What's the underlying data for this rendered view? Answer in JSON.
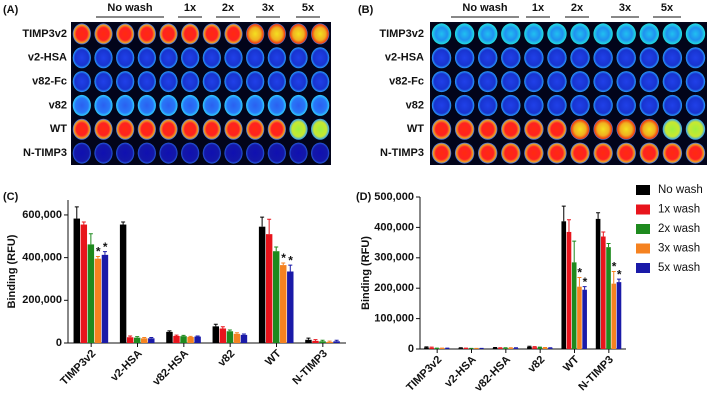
{
  "plates": [
    {
      "label": "(A)",
      "column_groups": [
        "No wash",
        "1x",
        "2x",
        "3x",
        "5x"
      ],
      "rows": [
        "TIMP3v2",
        "v2-HSA",
        "v82-Fc",
        "v82",
        "WT",
        "N-TIMP3"
      ]
    },
    {
      "label": "(B)",
      "column_groups": [
        "No wash",
        "1x",
        "2x",
        "3x",
        "5x"
      ],
      "rows": [
        "TIMP3v2",
        "v2-HSA",
        "v82-Fc",
        "v82",
        "WT",
        "N-TIMP3"
      ]
    }
  ],
  "chart_data": [
    {
      "type": "bar",
      "panel": "(C)",
      "ylabel": "Binding (RFU)",
      "categories": [
        "TIMP3v2",
        "v2-HSA",
        "v82-HSA",
        "v82",
        "WT",
        "N-TIMP3"
      ],
      "ylim": [
        0,
        670000
      ],
      "yticks": [
        0,
        {
          "value": 200000,
          "label": "200,000"
        },
        {
          "value": 400000,
          "label": "400,000"
        },
        {
          "value": 600000,
          "label": "600,000"
        }
      ],
      "series": [
        {
          "color": "#000000",
          "values": [
            583000,
            555000,
            52000,
            78000,
            545000,
            15000
          ],
          "errors": [
            55000,
            12000,
            5000,
            10000,
            45000,
            8000
          ]
        },
        {
          "color": "#e8141c",
          "values": [
            555000,
            27000,
            33000,
            68000,
            510000,
            10000
          ],
          "errors": [
            12000,
            6000,
            4000,
            8000,
            70000,
            6000
          ]
        },
        {
          "color": "#1e8a1e",
          "values": [
            462000,
            25000,
            32000,
            55000,
            430000,
            8000
          ],
          "errors": [
            50000,
            5000,
            4000,
            6000,
            20000,
            5000
          ]
        },
        {
          "color": "#f58220",
          "values": [
            395000,
            22000,
            28000,
            43000,
            365000,
            5000
          ],
          "errors": [
            10000,
            4000,
            3000,
            5000,
            10000,
            4000
          ]
        },
        {
          "color": "#1a1aa8",
          "values": [
            413000,
            22000,
            30000,
            38000,
            335000,
            8000
          ],
          "errors": [
            15000,
            4000,
            3000,
            4000,
            30000,
            5000
          ]
        }
      ],
      "annotations": [
        {
          "text": "*",
          "category": 0,
          "series": 3
        },
        {
          "text": "*",
          "category": 0,
          "series": 4
        },
        {
          "text": "*",
          "category": 4,
          "series": 3
        },
        {
          "text": "*",
          "category": 4,
          "series": 4
        }
      ]
    },
    {
      "type": "bar",
      "panel": "(D)",
      "ylabel": "Binding (RFU)",
      "categories": [
        "TIMP3v2",
        "v2-HSA",
        "v82-HSA",
        "v82",
        "WT",
        "N-TIMP3"
      ],
      "ylim": [
        0,
        500000
      ],
      "yticks": [
        0,
        {
          "value": 100000,
          "label": "100,000"
        },
        {
          "value": 200000,
          "label": "200,000"
        },
        {
          "value": 300000,
          "label": "300,000"
        },
        {
          "value": 400000,
          "label": "400,000"
        },
        {
          "value": 500000,
          "label": "500,000"
        }
      ],
      "series": [
        {
          "name": "No wash",
          "color": "#000000",
          "values": [
            5000,
            3000,
            4000,
            7000,
            420000,
            428000
          ],
          "errors": [
            2000,
            1000,
            1000,
            2000,
            50000,
            20000
          ]
        },
        {
          "name": "1x wash",
          "color": "#e8141c",
          "values": [
            4000,
            2000,
            3000,
            6000,
            385000,
            370000
          ],
          "errors": [
            2000,
            1000,
            1000,
            2000,
            40000,
            15000
          ]
        },
        {
          "name": "2x wash",
          "color": "#1e8a1e",
          "values": [
            2000,
            1000,
            3000,
            5000,
            285000,
            335000
          ],
          "errors": [
            1000,
            1000,
            1000,
            1000,
            70000,
            12000
          ]
        },
        {
          "name": "3x wash",
          "color": "#f58220",
          "values": [
            2000,
            1000,
            3000,
            4000,
            205000,
            215000
          ],
          "errors": [
            1000,
            1000,
            1000,
            1000,
            30000,
            40000
          ]
        },
        {
          "name": "5x wash",
          "color": "#1a1aa8",
          "values": [
            2000,
            1000,
            3000,
            3000,
            195000,
            220000
          ],
          "errors": [
            1000,
            1000,
            1000,
            1000,
            10000,
            10000
          ]
        }
      ],
      "annotations": [
        {
          "text": "*",
          "category": 4,
          "series": 3
        },
        {
          "text": "*",
          "category": 4,
          "series": 4
        },
        {
          "text": "*",
          "category": 5,
          "series": 3
        },
        {
          "text": "*",
          "category": 5,
          "series": 4
        }
      ]
    }
  ]
}
